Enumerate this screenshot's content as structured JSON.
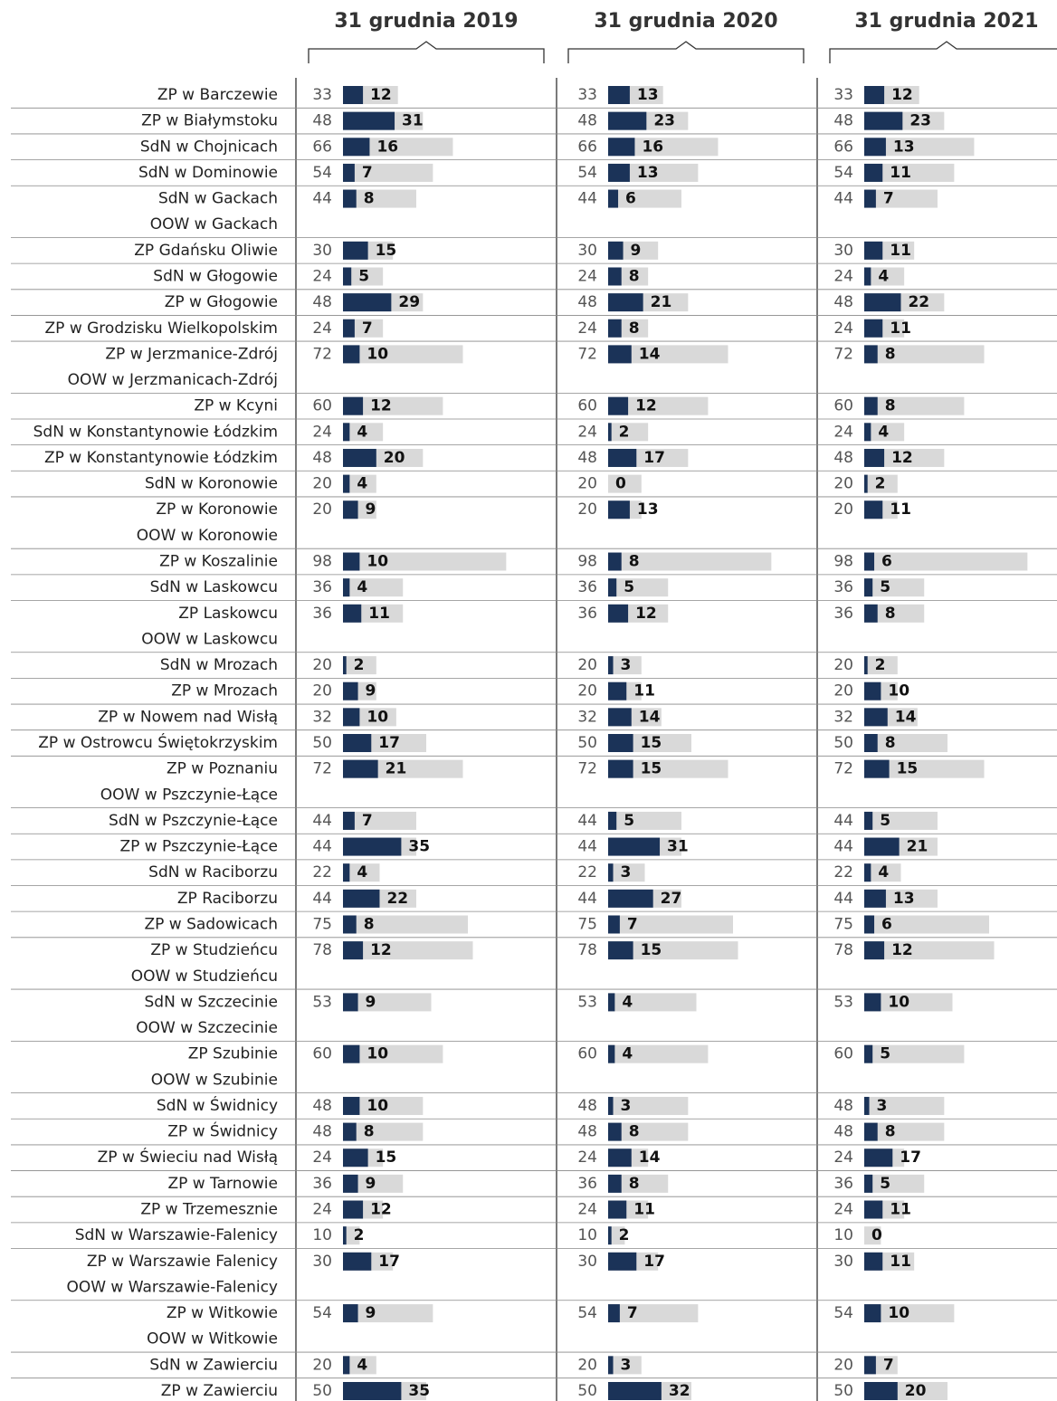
{
  "chart_data": {
    "type": "bar",
    "capacity_color": "#d9d9d9",
    "categories": [
      "ZP w Barczewie",
      "ZP w Białymstoku",
      "SdN w Chojnicach",
      "SdN w Dominowie",
      "SdN w Gackach",
      "OOW w Gackach",
      "ZP Gdańsku Oliwie",
      "SdN w Głogowie",
      "ZP w Głogowie",
      "ZP w Grodzisku Wielkopolskim",
      "ZP w Jerzmanice-Zdrój",
      "OOW w Jerzmanicach-Zdrój",
      "ZP w Kcyni",
      "SdN w Konstantynowie Łódzkim",
      "ZP w Konstantynowie Łódzkim",
      "SdN w Koronowie",
      "ZP w Koronowie",
      "OOW w Koronowie",
      "ZP w Koszalinie",
      "SdN w Laskowcu",
      "ZP Laskowcu",
      "OOW w Laskowcu",
      "SdN w Mrozach",
      "ZP w Mrozach",
      "ZP w Nowem nad Wisłą",
      "ZP w Ostrowcu Świętokrzyskim",
      "ZP w Poznaniu",
      "OOW w Pszczynie-Łące",
      "SdN w Pszczynie-Łące",
      "ZP w Pszczynie-Łące",
      "SdN w Raciborzu",
      "ZP Raciborzu",
      "ZP w Sadowicach",
      "ZP w Studzieńcu",
      "OOW w Studzieńcu",
      "SdN w Szczecinie",
      "OOW w Szczecinie",
      "ZP Szubinie",
      "OOW w Szubinie",
      "SdN w Świdnicy",
      "ZP w Świdnicy",
      "ZP w Świeciu nad Wisłą",
      "ZP w Tarnowie",
      "ZP w Trzemesznie",
      "SdN w Warszawie-Falenicy",
      "ZP w Warszawie Falenicy",
      "OOW w Warszawie-Falenicy",
      "ZP w Witkowie",
      "OOW w Witkowie",
      "SdN w Zawierciu",
      "ZP w Zawierciu"
    ],
    "series": [
      {
        "name": "31 grudnia 2019",
        "color": "#1b3358",
        "capacity": [
          33,
          48,
          66,
          54,
          44,
          null,
          30,
          24,
          48,
          24,
          72,
          null,
          60,
          24,
          48,
          20,
          20,
          null,
          98,
          36,
          36,
          null,
          20,
          20,
          32,
          50,
          72,
          null,
          44,
          44,
          22,
          44,
          75,
          78,
          null,
          53,
          null,
          60,
          null,
          48,
          48,
          24,
          36,
          24,
          10,
          30,
          null,
          54,
          null,
          20,
          50
        ],
        "values": [
          12,
          31,
          16,
          7,
          8,
          null,
          15,
          5,
          29,
          7,
          10,
          null,
          12,
          4,
          20,
          4,
          9,
          null,
          10,
          4,
          11,
          null,
          2,
          9,
          10,
          17,
          21,
          null,
          7,
          35,
          4,
          22,
          8,
          12,
          null,
          9,
          null,
          10,
          null,
          10,
          8,
          15,
          9,
          12,
          2,
          17,
          null,
          9,
          null,
          4,
          35
        ]
      },
      {
        "name": "31 grudnia 2020",
        "color": "#1b3358",
        "capacity": [
          33,
          48,
          66,
          54,
          44,
          null,
          30,
          24,
          48,
          24,
          72,
          null,
          60,
          24,
          48,
          20,
          20,
          null,
          98,
          36,
          36,
          null,
          20,
          20,
          32,
          50,
          72,
          null,
          44,
          44,
          22,
          44,
          75,
          78,
          null,
          53,
          null,
          60,
          null,
          48,
          48,
          24,
          36,
          24,
          10,
          30,
          null,
          54,
          null,
          20,
          50
        ],
        "values": [
          13,
          23,
          16,
          13,
          6,
          null,
          9,
          8,
          21,
          8,
          14,
          null,
          12,
          2,
          17,
          0,
          13,
          null,
          8,
          5,
          12,
          null,
          3,
          11,
          14,
          15,
          15,
          null,
          5,
          31,
          3,
          27,
          7,
          15,
          null,
          4,
          null,
          4,
          null,
          3,
          8,
          14,
          8,
          11,
          2,
          17,
          null,
          7,
          null,
          3,
          32
        ]
      },
      {
        "name": "31 grudnia 2021",
        "color": "#1b3358",
        "capacity": [
          33,
          48,
          66,
          54,
          44,
          null,
          30,
          24,
          48,
          24,
          72,
          null,
          60,
          24,
          48,
          20,
          20,
          null,
          98,
          36,
          36,
          null,
          20,
          20,
          32,
          50,
          72,
          null,
          44,
          44,
          22,
          44,
          75,
          78,
          null,
          53,
          null,
          60,
          null,
          48,
          48,
          24,
          36,
          24,
          10,
          30,
          null,
          54,
          null,
          20,
          50
        ],
        "values": [
          12,
          23,
          13,
          11,
          7,
          null,
          11,
          4,
          22,
          11,
          8,
          null,
          8,
          4,
          12,
          2,
          11,
          null,
          6,
          5,
          8,
          null,
          2,
          10,
          14,
          8,
          15,
          null,
          5,
          21,
          4,
          13,
          6,
          12,
          null,
          10,
          null,
          5,
          null,
          3,
          8,
          17,
          5,
          11,
          0,
          11,
          null,
          10,
          null,
          7,
          20
        ]
      }
    ]
  }
}
